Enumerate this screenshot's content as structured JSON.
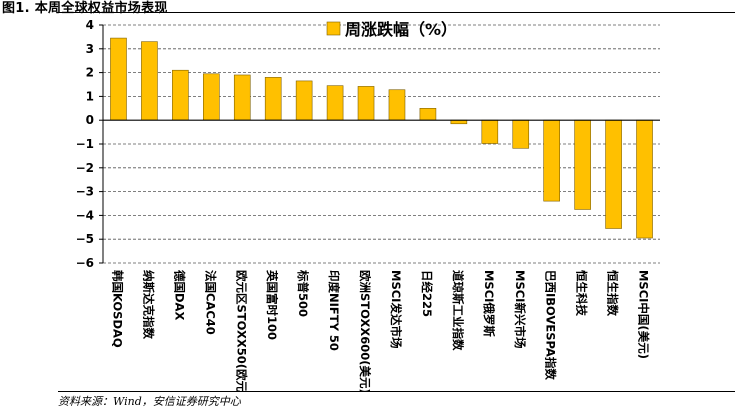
{
  "figure": {
    "title": "图1. 本周全球权益市场表现",
    "source": "资料来源：Wind，安信证券研究中心"
  },
  "colors": {
    "bar_fill": "#FFC000",
    "bar_stroke": "#7F6000",
    "grid": "#555555"
  },
  "chart_data": {
    "type": "bar",
    "title": "",
    "xlabel": "",
    "ylabel": "",
    "ylim": [
      -6,
      4
    ],
    "yticks": [
      4,
      3,
      2,
      1,
      0,
      -1,
      -2,
      -3,
      -4,
      -5,
      -6
    ],
    "grid": "horizontal-dashed",
    "legend_position": "top",
    "categories": [
      "韩国KOSDAQ",
      "纳斯达克指数",
      "德国DAX",
      "法国CAC40",
      "欧元区STOXX50(欧元)",
      "英国富时100",
      "标普500",
      "印度NIFTY 50",
      "欧洲STOXX600(美元)",
      "MSCI发达市场",
      "日经225",
      "道琼斯工业指数",
      "MSCI俄罗斯",
      "MSCI新兴市场",
      "巴西IBOVESPA指数",
      "恒生科技",
      "恒生指数",
      "MSCI中国(美元)"
    ],
    "series": [
      {
        "name": "周涨跌幅（%）",
        "values": [
          3.45,
          3.3,
          2.1,
          1.95,
          1.9,
          1.8,
          1.65,
          1.45,
          1.42,
          1.28,
          0.5,
          -0.15,
          -0.98,
          -1.18,
          -3.4,
          -3.75,
          -4.55,
          -4.95
        ]
      }
    ]
  }
}
